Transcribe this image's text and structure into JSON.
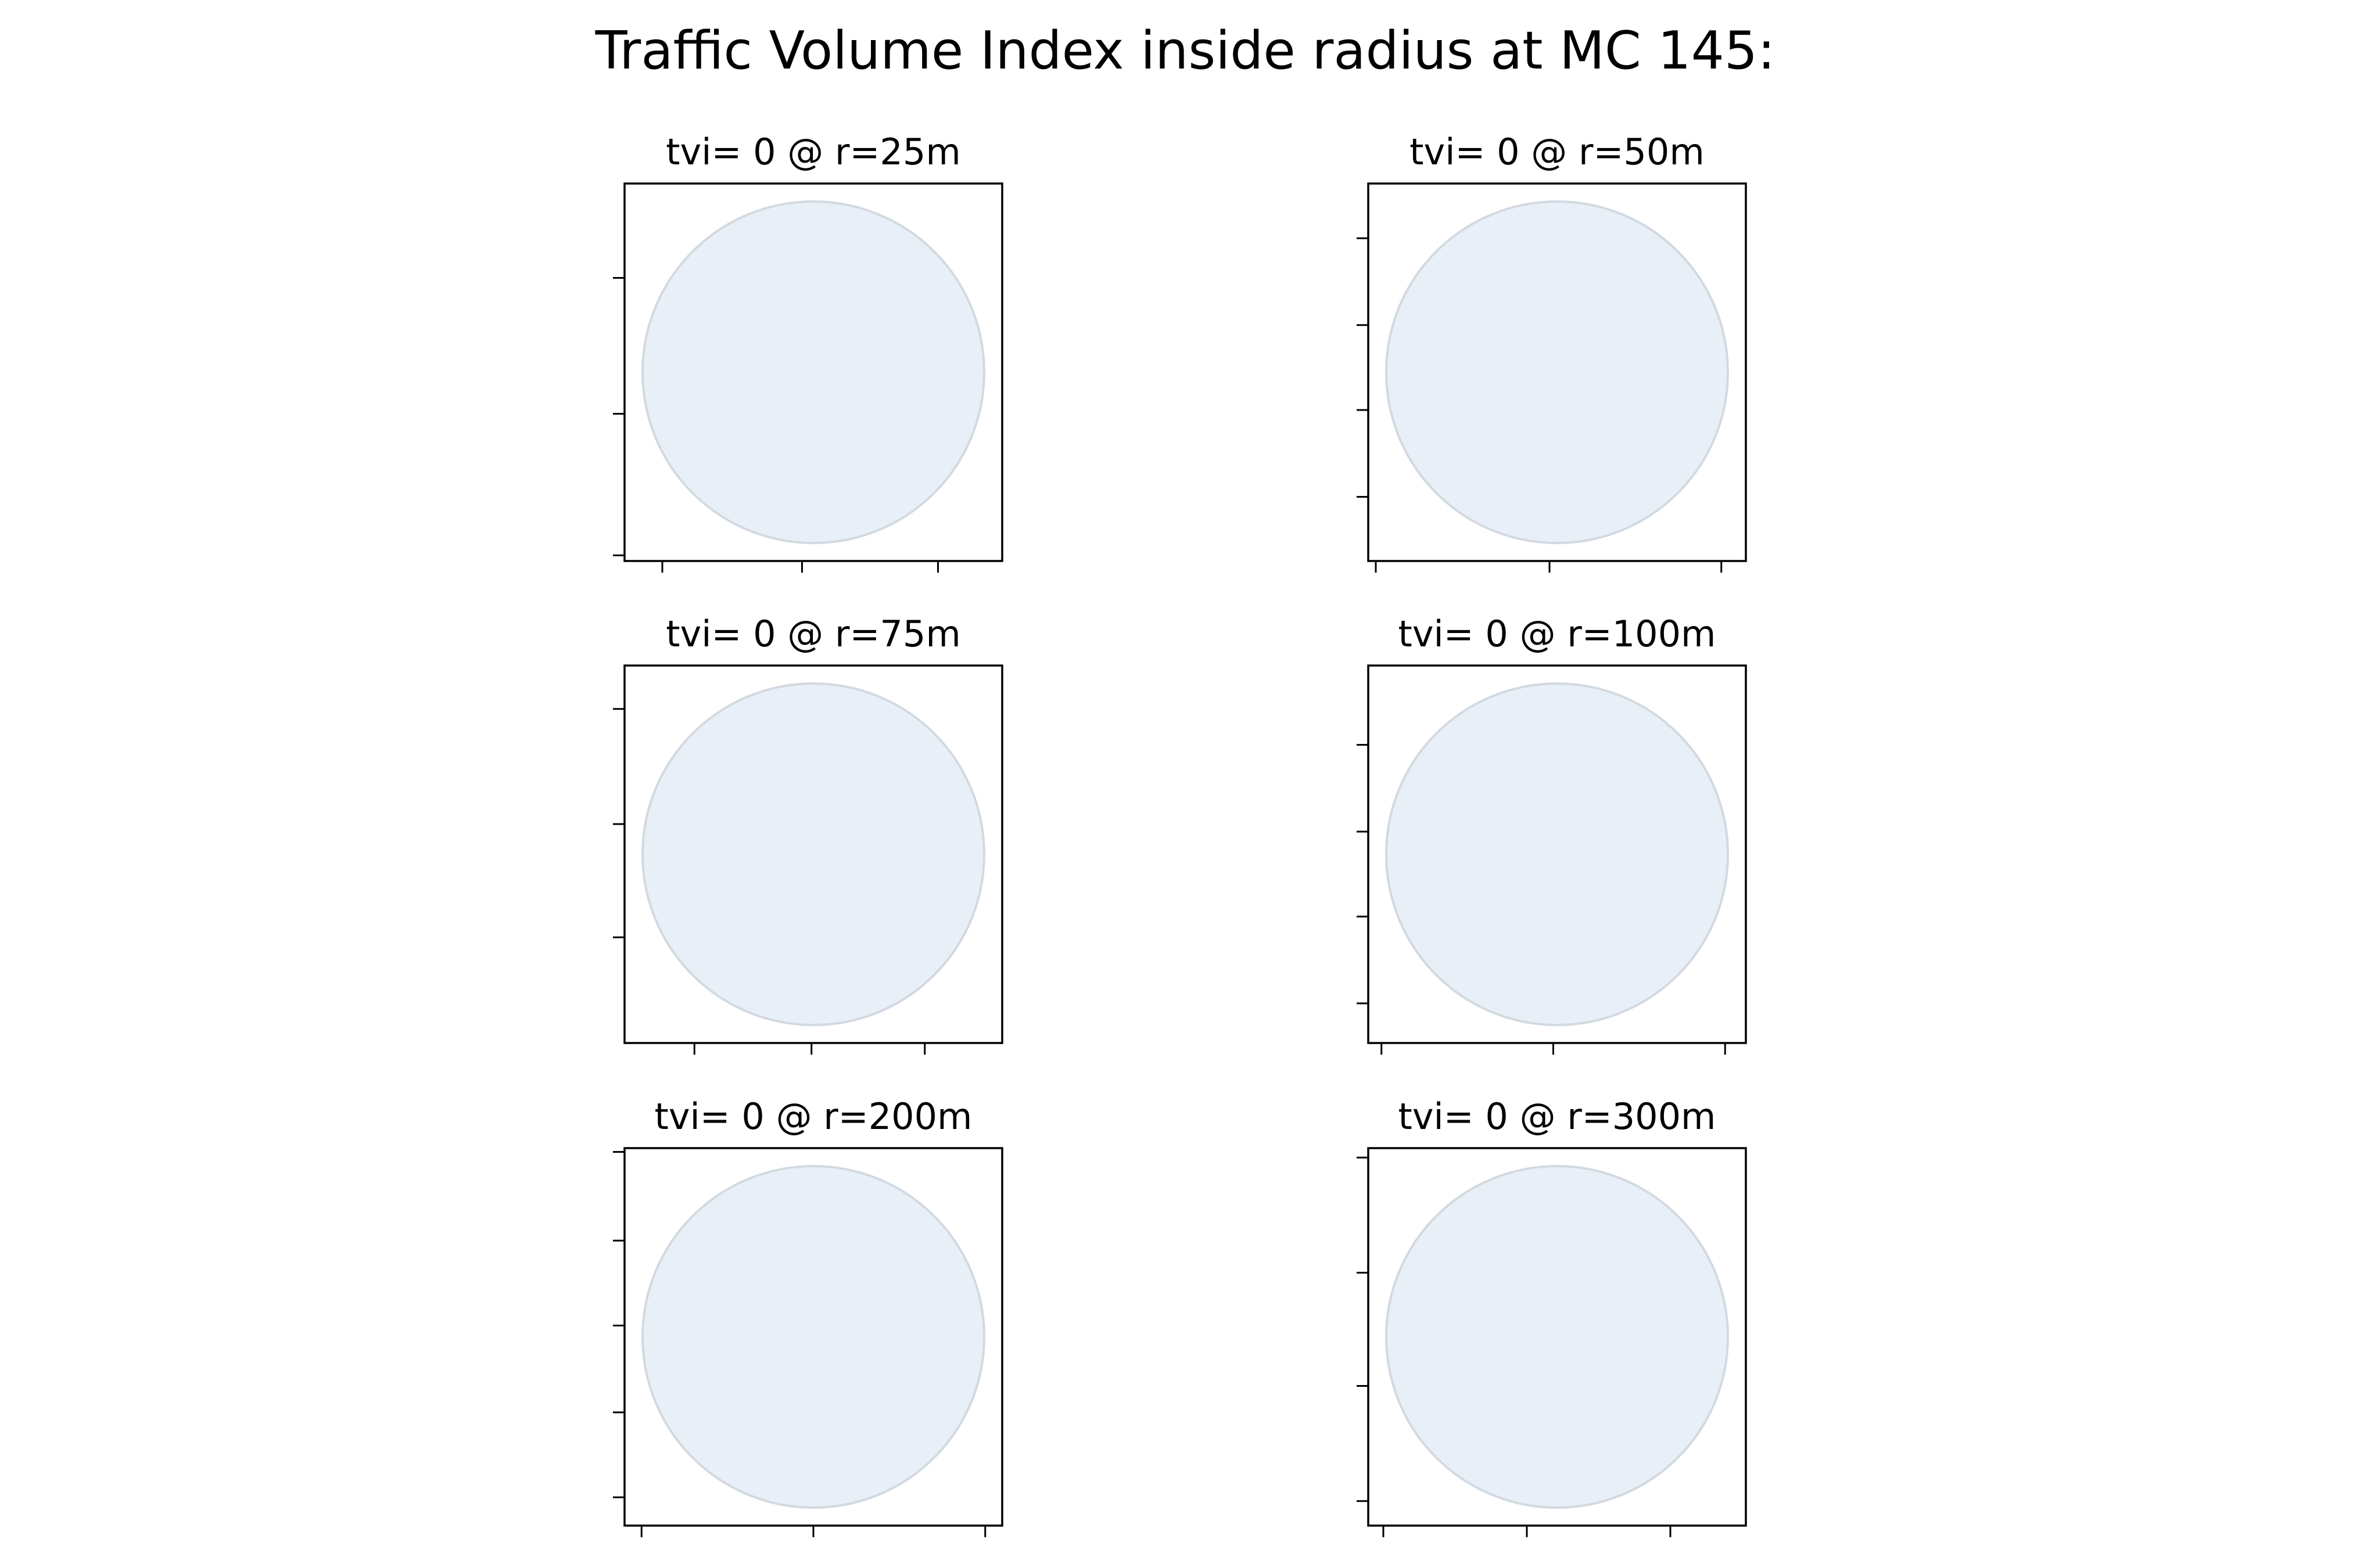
{
  "chart_data": {
    "type": "grid",
    "title": "Traffic Volume Index inside radius at MC 145:",
    "colors": {
      "circle_fill": "#e8eff7",
      "circle_edge": "#d2d9e0",
      "axes": "#000000",
      "background": "#ffffff"
    },
    "panels": [
      {
        "title": "tvi= 0 @ r=25m",
        "radius": 25,
        "tvi": 0,
        "xticks": 3,
        "yticks": 3,
        "x_tick_fracs": [
          0.1,
          0.47,
          0.83
        ],
        "y_tick_fracs": [
          0.25,
          0.61,
          0.985
        ]
      },
      {
        "title": "tvi= 0 @ r=50m",
        "radius": 50,
        "tvi": 0,
        "xticks": 3,
        "yticks": 4,
        "x_tick_fracs": [
          0.02,
          0.48,
          0.935
        ],
        "y_tick_fracs": [
          0.145,
          0.375,
          0.6,
          0.83
        ]
      },
      {
        "title": "tvi= 0 @ r=75m",
        "radius": 75,
        "tvi": 0,
        "xticks": 3,
        "yticks": 3,
        "x_tick_fracs": [
          0.185,
          0.495,
          0.795
        ],
        "y_tick_fracs": [
          0.115,
          0.42,
          0.72
        ]
      },
      {
        "title": "tvi= 0 @ r=100m",
        "radius": 100,
        "tvi": 0,
        "xticks": 3,
        "yticks": 4,
        "x_tick_fracs": [
          0.035,
          0.49,
          0.945
        ],
        "y_tick_fracs": [
          0.21,
          0.44,
          0.665,
          0.895
        ]
      },
      {
        "title": "tvi= 0 @ r=200m",
        "radius": 200,
        "tvi": 0,
        "xticks": 3,
        "yticks": 5,
        "x_tick_fracs": [
          0.045,
          0.5,
          0.955
        ],
        "y_tick_fracs": [
          0.01,
          0.245,
          0.47,
          0.7,
          0.925
        ]
      },
      {
        "title": "tvi= 0 @ r=300m",
        "radius": 300,
        "tvi": 0,
        "xticks": 3,
        "yticks": 4,
        "x_tick_fracs": [
          0.04,
          0.42,
          0.8
        ],
        "y_tick_fracs": [
          0.025,
          0.33,
          0.63,
          0.935
        ]
      }
    ]
  }
}
